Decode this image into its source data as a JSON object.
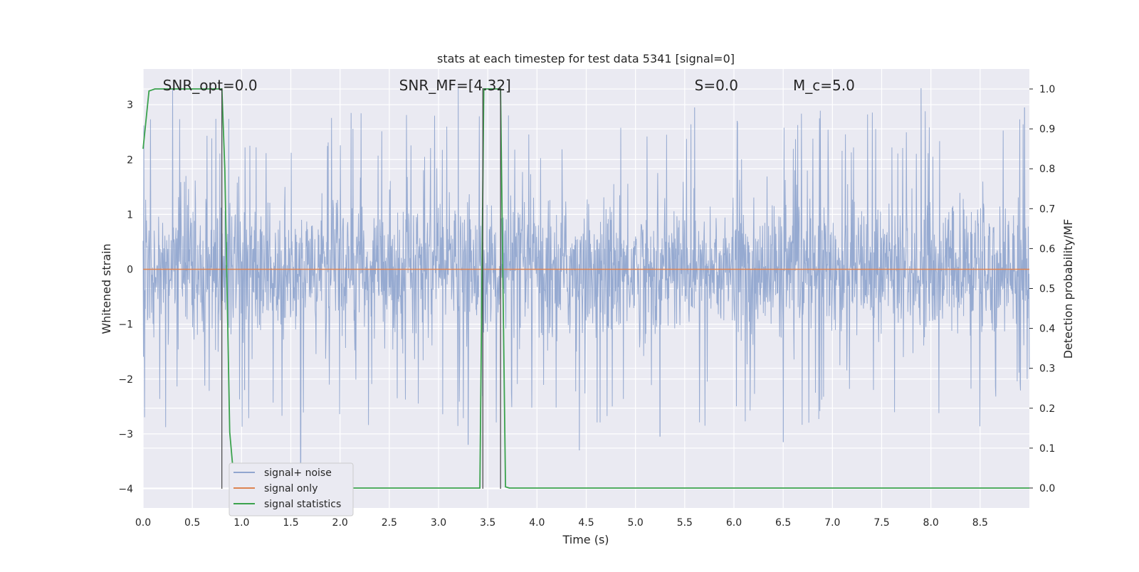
{
  "chart_data": {
    "type": "line",
    "title": "stats at each timestep for test data 5341 [signal=0]",
    "xlabel": "Time (s)",
    "ylabel": "Whitened strain",
    "y2label": "Detection probability/MF",
    "xlim": [
      0.0,
      9.0
    ],
    "ylim": [
      -4.35,
      3.65
    ],
    "y2lim": [
      -0.05,
      1.05
    ],
    "xticks": [
      0.0,
      0.5,
      1.0,
      1.5,
      2.0,
      2.5,
      3.0,
      3.5,
      4.0,
      4.5,
      5.0,
      5.5,
      6.0,
      6.5,
      7.0,
      7.5,
      8.0,
      8.5
    ],
    "xtick_labels": [
      "0.0",
      "0.5",
      "1.0",
      "1.5",
      "2.0",
      "2.5",
      "3.0",
      "3.5",
      "4.0",
      "4.5",
      "5.0",
      "5.5",
      "6.0",
      "6.5",
      "7.0",
      "7.5",
      "8.0",
      "8.5"
    ],
    "yticks": [
      3,
      2,
      1,
      0,
      -1,
      -2,
      -3,
      -4
    ],
    "ytick_labels": [
      "3",
      "2",
      "1",
      "0",
      "−1",
      "−2",
      "−3",
      "−4"
    ],
    "y2ticks": [
      1.0,
      0.9,
      0.8,
      0.7,
      0.6,
      0.5,
      0.4,
      0.3,
      0.2,
      0.1,
      0.0
    ],
    "y2tick_labels": [
      "1.0",
      "0.9",
      "0.8",
      "0.7",
      "0.6",
      "0.5",
      "0.4",
      "0.3",
      "0.2",
      "0.1",
      "0.0"
    ],
    "grid": true,
    "legend_position": "lower-left",
    "annotations": [
      {
        "text": "SNR_opt=0.0",
        "x": 0.2,
        "y": 3.35
      },
      {
        "text": "SNR_MF=[4.32]",
        "x": 2.6,
        "y": 3.35
      },
      {
        "text": "S=0.0",
        "x": 5.6,
        "y": 3.35
      },
      {
        "text": "M_c=5.0",
        "x": 6.6,
        "y": 3.35
      }
    ],
    "vlines": [
      {
        "x": 0.8,
        "y0": -4.0,
        "y1": 3.3
      },
      {
        "x": 3.45,
        "y0": -4.0,
        "y1": 3.3
      },
      {
        "x": 3.63,
        "y0": -4.0,
        "y1": 3.3
      }
    ],
    "series": [
      {
        "name": "signal+ noise",
        "color": "#91a6cf",
        "kind": "noise",
        "typical_abs": 1.0,
        "envelope": 2.0,
        "peaks": [
          [
            0.3,
            3.3
          ],
          [
            1.03,
            -2.2
          ],
          [
            1.6,
            -3.55
          ],
          [
            3.2,
            3.3
          ],
          [
            3.3,
            -3.2
          ],
          [
            4.43,
            -3.3
          ],
          [
            5.25,
            -3.05
          ],
          [
            5.6,
            2.95
          ],
          [
            6.5,
            -3.15
          ],
          [
            7.9,
            3.3
          ],
          [
            8.95,
            2.95
          ]
        ]
      },
      {
        "name": "signal only",
        "color": "#dd8452",
        "kind": "flat",
        "value": 0.0
      },
      {
        "name": "signal statistics",
        "color": "#3ba24d",
        "axis": "y2",
        "kind": "line",
        "points": [
          [
            0.0,
            0.85
          ],
          [
            0.06,
            0.995
          ],
          [
            0.12,
            1.0
          ],
          [
            0.8,
            1.0
          ],
          [
            0.83,
            0.8
          ],
          [
            0.88,
            0.14
          ],
          [
            0.93,
            0.0
          ],
          [
            3.1,
            0.0
          ],
          [
            3.42,
            0.0
          ],
          [
            3.46,
            1.0
          ],
          [
            3.63,
            1.0
          ],
          [
            3.68,
            0.003
          ],
          [
            3.72,
            0.0
          ],
          [
            9.0,
            0.0
          ]
        ]
      }
    ]
  }
}
